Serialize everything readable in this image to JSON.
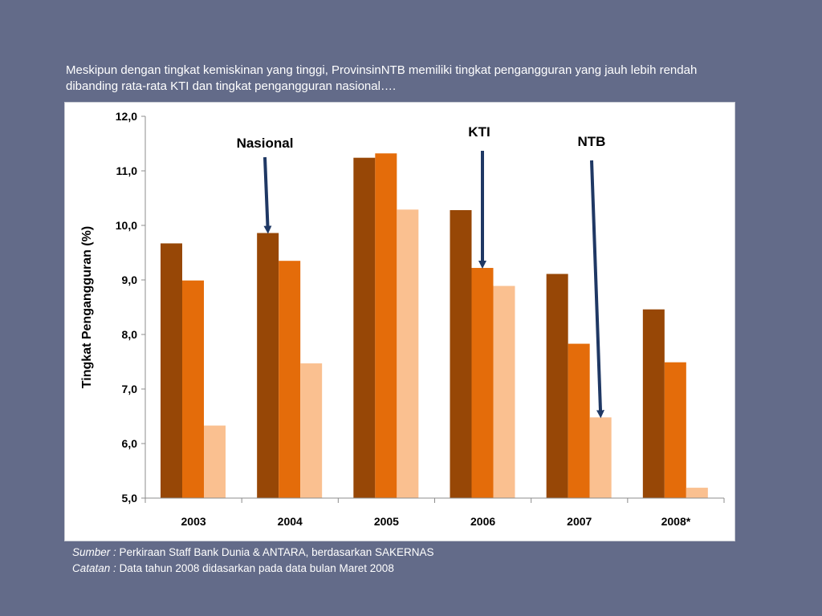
{
  "headline": "Meskipun dengan tingkat kemiskinan yang tinggi, ProvinsinNTB memiliki tingkat pengangguran yang  jauh lebih rendah dibanding rata-rata KTI dan tingkat pengangguran nasional….",
  "footnotes": {
    "source_label": "Sumber :",
    "source_text": "Perkiraan Staff Bank Dunia & ANTARA, berdasarkan SAKERNAS",
    "note_label": "Catatan :",
    "note_text": "Data tahun 2008 didasarkan pada data bulan Maret 2008"
  },
  "chart_data": {
    "type": "bar",
    "ylabel": "Tingkat Pengangguran (%)",
    "ylim": [
      5,
      12
    ],
    "yticks": [
      "5,0",
      "6,0",
      "7,0",
      "8,0",
      "9,0",
      "10,0",
      "11,0",
      "12,0"
    ],
    "categories": [
      "2003",
      "2004",
      "2005",
      "2006",
      "2007",
      "2008*"
    ],
    "series": [
      {
        "name": "Nasional",
        "color": "#974706",
        "values": [
          9.67,
          9.86,
          11.24,
          10.28,
          9.11,
          8.46
        ]
      },
      {
        "name": "KTI",
        "color": "#e46c0a",
        "values": [
          8.99,
          9.35,
          11.32,
          9.22,
          7.83,
          7.49
        ]
      },
      {
        "name": "NTB",
        "color": "#fac090",
        "values": [
          6.33,
          7.47,
          10.29,
          8.89,
          6.48,
          5.19
        ]
      }
    ],
    "grid": false,
    "annotation_arrow_color": "#1f3864"
  }
}
